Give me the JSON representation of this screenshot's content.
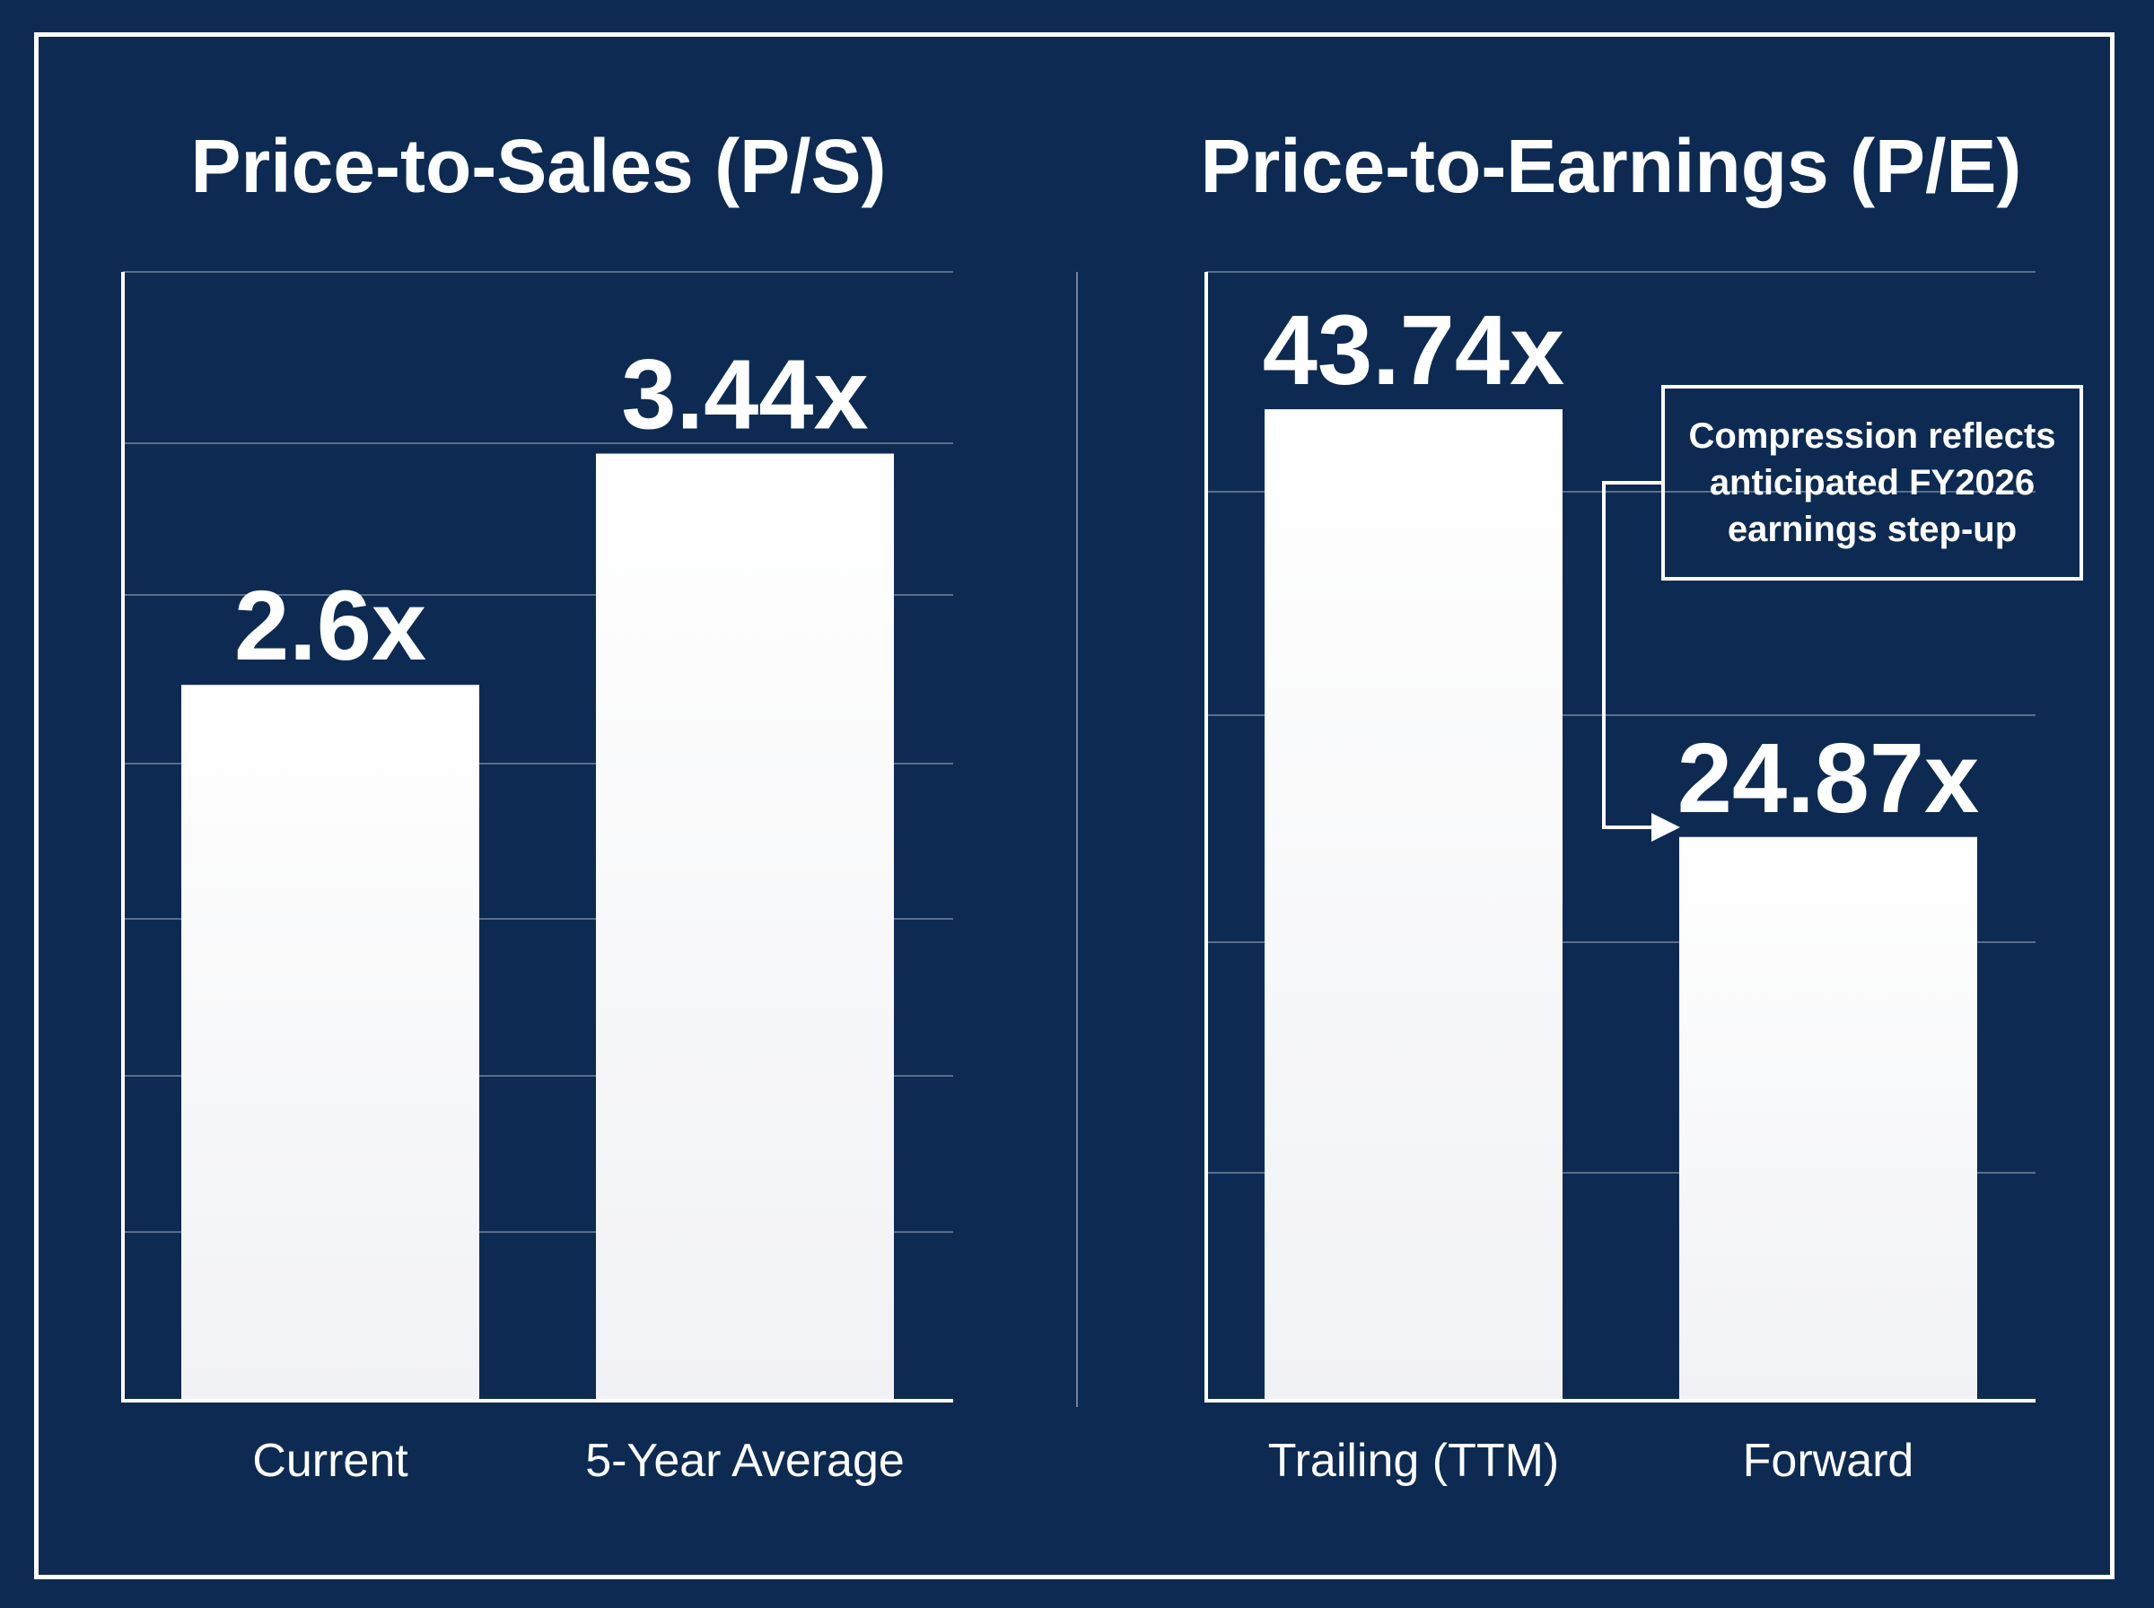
{
  "colors": {
    "background": "#0d2b52",
    "bar": "#ffffff",
    "gridline": "#8a9bb3",
    "text": "#ffffff"
  },
  "chart_data": [
    {
      "type": "bar",
      "title": "Price-to-Sales (P/S)",
      "categories": [
        "Current",
        "5-Year Average"
      ],
      "values": [
        2.6,
        3.44
      ],
      "value_labels": [
        "2.6x",
        "3.44x"
      ],
      "ylim": [
        0,
        4.1
      ],
      "grid": true
    },
    {
      "type": "bar",
      "title": "Price-to-Earnings (P/E)",
      "categories": [
        "Trailing (TTM)",
        "Forward"
      ],
      "values": [
        43.74,
        24.87
      ],
      "value_labels": [
        "43.74x",
        "24.87x"
      ],
      "ylim": [
        0,
        49.8
      ],
      "grid": true,
      "annotation": "Compression reflects anticipated FY2026 earnings step-up"
    }
  ]
}
